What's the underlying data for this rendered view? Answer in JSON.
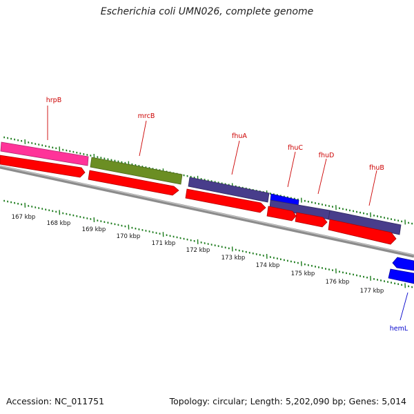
{
  "title": "Escherichia coli UMN026, complete genome",
  "accession_text": "Accession: NC_011751",
  "stats_text": "Topology: circular; Length: 5,202,090 bp; Genes: 5,014",
  "colors": {
    "backbone": "#8c8c8c",
    "tick": "#1a7a1a",
    "cds": "#ff0000",
    "label_forward": "#cc0000",
    "label_reverse": "#0000cc",
    "hrpB": "#ff3399",
    "mrcB": "#6b8e23",
    "fhu": "#483d8b",
    "fhuC": "#0000ff",
    "hemL": "#0000ff"
  },
  "genes": [
    {
      "name": "hrpB",
      "strand": "+",
      "color_key": "hrpB"
    },
    {
      "name": "mrcB",
      "strand": "+",
      "color_key": "mrcB"
    },
    {
      "name": "fhuA",
      "strand": "+",
      "color_key": "fhu"
    },
    {
      "name": "fhuC",
      "strand": "+",
      "color_key": "fhuC"
    },
    {
      "name": "fhuD",
      "strand": "+",
      "color_key": "fhu"
    },
    {
      "name": "fhuB",
      "strand": "+",
      "color_key": "fhu"
    },
    {
      "name": "hemL",
      "strand": "-",
      "color_key": "hemL"
    }
  ],
  "scale_labels": [
    "167 kbp",
    "168 kbp",
    "169 kbp",
    "170 kbp",
    "171 kbp",
    "172 kbp",
    "173 kbp",
    "174 kbp",
    "175 kbp",
    "176 kbp",
    "177 kbp"
  ]
}
